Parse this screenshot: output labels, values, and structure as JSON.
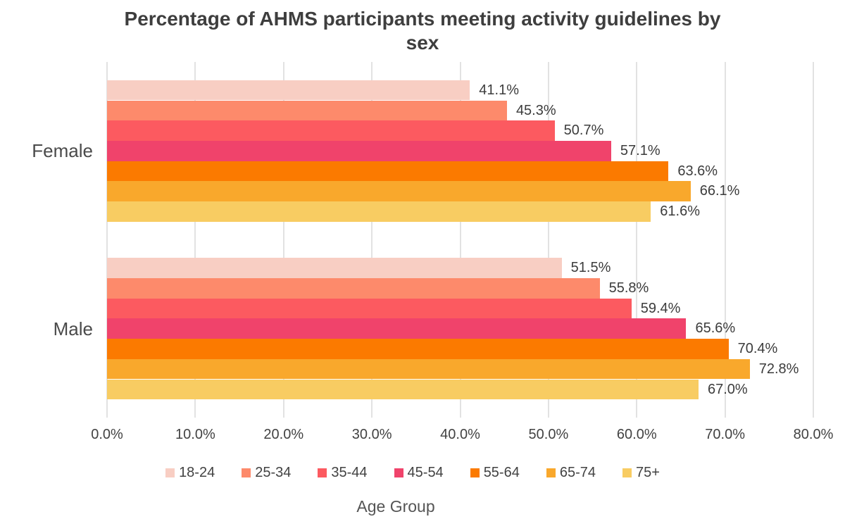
{
  "chart_data": {
    "type": "bar",
    "orientation": "horizontal",
    "title": "Percentage of AHMS participants meeting activity guidelines by sex",
    "legend_title": "Age Group",
    "categories": [
      "Female",
      "Male"
    ],
    "series": [
      {
        "name": "18-24",
        "color": "#F8CEC3",
        "values": [
          41.1,
          51.5
        ]
      },
      {
        "name": "25-34",
        "color": "#FD8A6B",
        "values": [
          45.3,
          55.8
        ]
      },
      {
        "name": "35-44",
        "color": "#FC5A60",
        "values": [
          50.7,
          59.4
        ]
      },
      {
        "name": "45-54",
        "color": "#F0436B",
        "values": [
          57.1,
          65.6
        ]
      },
      {
        "name": "55-64",
        "color": "#FB7A00",
        "values": [
          63.6,
          70.4
        ]
      },
      {
        "name": "65-74",
        "color": "#F9A82C",
        "values": [
          66.1,
          72.8
        ]
      },
      {
        "name": "75+",
        "color": "#F8CC62",
        "values": [
          61.6,
          67.0
        ]
      }
    ],
    "value_suffix": "%",
    "value_decimals": 1,
    "x_ticks": [
      "0.0%",
      "10.0%",
      "20.0%",
      "30.0%",
      "40.0%",
      "50.0%",
      "60.0%",
      "70.0%",
      "80.0%"
    ],
    "xlim": [
      0,
      80
    ],
    "grid": true,
    "grid_color": "#E2E2E2",
    "legend_position": "bottom"
  }
}
